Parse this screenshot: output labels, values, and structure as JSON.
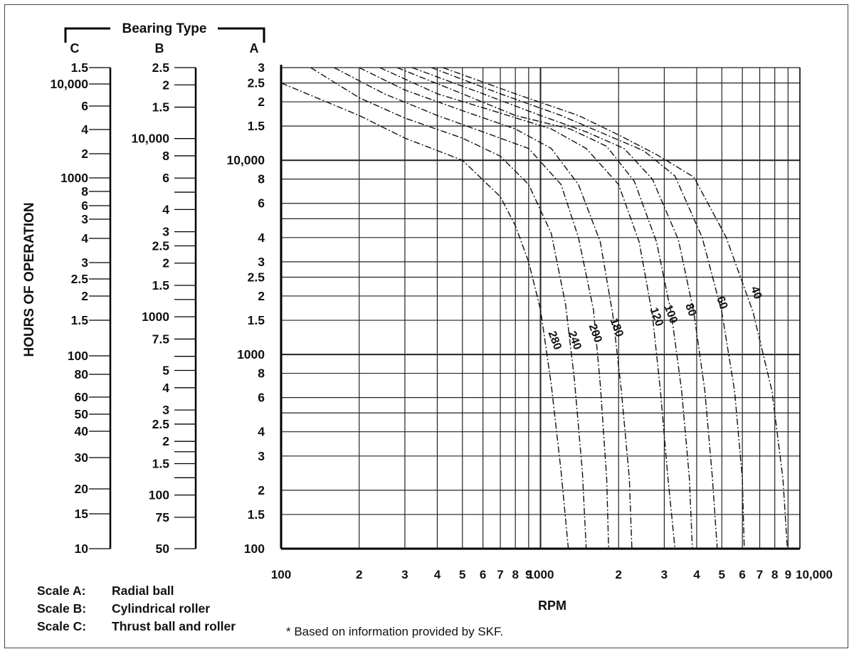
{
  "chart_data": {
    "type": "line",
    "x_axis": {
      "label": "RPM",
      "scale": "log",
      "range": [
        100,
        10000
      ],
      "tick_labels": [
        "100",
        "2",
        "3",
        "4",
        "5",
        "6",
        "7",
        "8",
        "9",
        "1000",
        "2",
        "3",
        "4",
        "5",
        "6",
        "7",
        "8",
        "9",
        "10,000"
      ]
    },
    "y_axis": {
      "label": "HOURS OF OPERATION",
      "scale": "log",
      "group_title": "Bearing Type",
      "scales": [
        {
          "name": "C",
          "range": [
            10,
            15000
          ],
          "tick_labels": [
            "1.5",
            "10,000",
            "6",
            "4",
            "2",
            "1000",
            "8",
            "6",
            "3",
            "4",
            "3",
            "2.5",
            "2",
            "1.5",
            "100",
            "80",
            "60",
            "50",
            "40",
            "30",
            "20",
            "15",
            "10"
          ]
        },
        {
          "name": "B",
          "range": [
            50,
            25000
          ],
          "tick_labels": [
            "2.5",
            "2",
            "1.5",
            "10,000",
            "8",
            "6",
            "4",
            "3",
            "2.5",
            "2",
            "1.5",
            "1000",
            "7.5",
            "5",
            "4",
            "3",
            "2.5",
            "2",
            "1.5",
            "100",
            "75",
            "50"
          ]
        },
        {
          "name": "A",
          "range": [
            100,
            30000
          ],
          "tick_labels": [
            "3",
            "2.5",
            "2",
            "1.5",
            "10,000",
            "8",
            "6",
            "4",
            "3",
            "2.5",
            "2",
            "1.5",
            "1000",
            "8",
            "6",
            "4",
            "3",
            "2",
            "1.5",
            "100"
          ]
        }
      ]
    },
    "grid": true,
    "series": [
      {
        "name": "280",
        "x": [
          100,
          200,
          300,
          500,
          700,
          800,
          900,
          1000,
          1100,
          1200,
          1280
        ],
        "y": [
          25000,
          17000,
          13000,
          10000,
          6500,
          4600,
          3000,
          1700,
          700,
          250,
          100
        ]
      },
      {
        "name": "240",
        "x": [
          130,
          200,
          300,
          500,
          700,
          900,
          1100,
          1250,
          1350,
          1450,
          1500
        ],
        "y": [
          30000,
          21000,
          16500,
          13000,
          10500,
          7500,
          4200,
          1800,
          750,
          250,
          100
        ]
      },
      {
        "name": "200",
        "x": [
          160,
          250,
          400,
          600,
          900,
          1200,
          1400,
          1600,
          1700,
          1800,
          1830
        ],
        "y": [
          30000,
          22000,
          17000,
          14000,
          11500,
          7500,
          4000,
          1700,
          700,
          230,
          100
        ]
      },
      {
        "name": "180",
        "x": [
          200,
          300,
          500,
          800,
          1100,
          1400,
          1700,
          1900,
          2050,
          2200,
          2250
        ],
        "y": [
          30000,
          23000,
          18000,
          14500,
          11500,
          7500,
          3800,
          1600,
          650,
          230,
          100
        ]
      },
      {
        "name": "120",
        "x": [
          240,
          400,
          700,
          1100,
          1500,
          2000,
          2400,
          2700,
          2900,
          3100,
          3300
        ],
        "y": [
          30000,
          22000,
          17500,
          14500,
          11500,
          7500,
          3800,
          1600,
          650,
          230,
          100
        ]
      },
      {
        "name": "100",
        "x": [
          280,
          500,
          800,
          1300,
          1800,
          2300,
          2800,
          3200,
          3500,
          3750,
          3850
        ],
        "y": [
          30000,
          22000,
          17000,
          14500,
          11800,
          7800,
          3800,
          1600,
          650,
          230,
          100
        ]
      },
      {
        "name": "80",
        "x": [
          320,
          600,
          1000,
          1500,
          2100,
          2700,
          3400,
          3900,
          4300,
          4600,
          4800
        ],
        "y": [
          30000,
          22000,
          17000,
          14000,
          11500,
          8000,
          3900,
          1650,
          650,
          230,
          100
        ]
      },
      {
        "name": "60",
        "x": [
          380,
          700,
          1200,
          1800,
          2500,
          3300,
          4200,
          5000,
          5600,
          6000,
          6100
        ],
        "y": [
          30000,
          22000,
          17000,
          13500,
          11200,
          8300,
          4000,
          1650,
          650,
          230,
          100
        ]
      },
      {
        "name": "40",
        "x": [
          420,
          800,
          1400,
          2000,
          2800,
          3900,
          5200,
          6600,
          7800,
          8600,
          8950
        ],
        "y": [
          30000,
          22000,
          17000,
          13500,
          10700,
          8200,
          4000,
          1650,
          650,
          230,
          100
        ]
      }
    ],
    "legend": [
      {
        "key": "Scale A:",
        "value": "Radial ball"
      },
      {
        "key": "Scale B:",
        "value": "Cylindrical roller"
      },
      {
        "key": "Scale C:",
        "value": "Thrust ball and roller"
      }
    ],
    "footnote": "* Based on information provided by SKF."
  }
}
